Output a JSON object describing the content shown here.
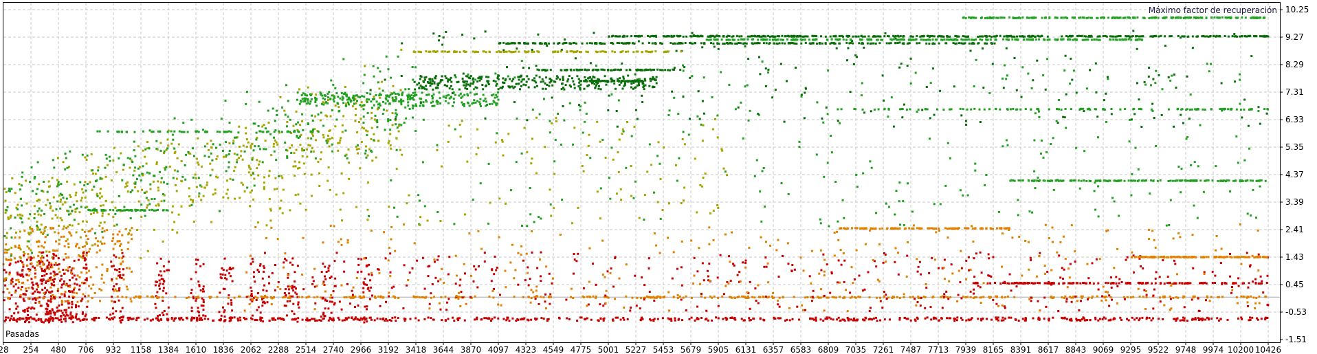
{
  "chart_data": {
    "type": "scatter",
    "title": "Máximo factor de recuperación",
    "xlabel": "Pasadas",
    "ylabel": "",
    "xlim": [
      28,
      10426
    ],
    "ylim": [
      -1.51,
      10.25
    ],
    "grid": true,
    "x_ticks": [
      "28",
      "254",
      "480",
      "706",
      "932",
      "1158",
      "1384",
      "1610",
      "1836",
      "2062",
      "2288",
      "2514",
      "2740",
      "2966",
      "3192",
      "3418",
      "3644",
      "3870",
      "4097",
      "4323",
      "4549",
      "4775",
      "5001",
      "5227",
      "5453",
      "5679",
      "5905",
      "6131",
      "6357",
      "6583",
      "6809",
      "7035",
      "7261",
      "7487",
      "7713",
      "7939",
      "8165",
      "8391",
      "8617",
      "8843",
      "9069",
      "9295",
      "9522",
      "9748",
      "9974",
      "10200",
      "10426"
    ],
    "y_ticks": [
      "10.25",
      "9.27",
      "8.29",
      "7.31",
      "6.33",
      "5.35",
      "4.37",
      "3.39",
      "2.41",
      "1.43",
      "0.45",
      "-0.53",
      "-1.51"
    ],
    "colors": {
      "red": "#c80000",
      "orange": "#e08000",
      "olive": "#a6a600",
      "green": "#22a022",
      "dkgreen": "#0a6e0a"
    },
    "seed": 12345,
    "point_clusters": [
      {
        "color": "red",
        "x": [
          28,
          600
        ],
        "y": [
          -0.9,
          1.5
        ],
        "n": 250
      },
      {
        "color": "orange",
        "x": [
          28,
          1100
        ],
        "y": [
          -0.2,
          2.5
        ],
        "n": 250
      },
      {
        "color": "olive",
        "x": [
          28,
          3300
        ],
        "trend": [
          2.5,
          6.5
        ],
        "spread": 0.9,
        "n": 500
      },
      {
        "color": "green",
        "x": [
          28,
          3400
        ],
        "trend": [
          3.0,
          7.2
        ],
        "spread": 0.8,
        "n": 350
      },
      {
        "color": "green",
        "x": [
          2400,
          4100
        ],
        "y": [
          6.8,
          7.3
        ],
        "n": 250
      },
      {
        "color": "dkgreen",
        "x": [
          3400,
          5400
        ],
        "y": [
          7.4,
          7.9
        ],
        "n": 300
      },
      {
        "color": "red",
        "x": [
          340,
          460
        ],
        "y": [
          -0.9,
          1.8
        ],
        "n": 40
      },
      {
        "color": "red",
        "x": [
          600,
          720
        ],
        "y": [
          -0.9,
          1.6
        ],
        "n": 40
      },
      {
        "color": "red",
        "x": [
          900,
          1020
        ],
        "y": [
          -0.9,
          1.6
        ],
        "n": 40
      },
      {
        "color": "red",
        "x": [
          1270,
          1390
        ],
        "y": [
          -0.9,
          1.4
        ],
        "n": 40
      },
      {
        "color": "red",
        "x": [
          1570,
          1690
        ],
        "y": [
          -0.9,
          1.4
        ],
        "n": 40
      },
      {
        "color": "red",
        "x": [
          1800,
          1920
        ],
        "y": [
          -0.9,
          1.4
        ],
        "n": 40
      },
      {
        "color": "red",
        "x": [
          2060,
          2180
        ],
        "y": [
          -0.9,
          1.4
        ],
        "n": 35
      },
      {
        "color": "red",
        "x": [
          2340,
          2460
        ],
        "y": [
          -0.9,
          1.4
        ],
        "n": 35
      },
      {
        "color": "red",
        "x": [
          2640,
          2760
        ],
        "y": [
          -0.9,
          1.4
        ],
        "n": 30
      },
      {
        "color": "red",
        "x": [
          2940,
          3060
        ],
        "y": [
          -0.9,
          1.4
        ],
        "n": 30
      },
      {
        "color": "red",
        "x": [
          28,
          10426
        ],
        "y": [
          -0.84,
          -0.72
        ],
        "n": 600
      },
      {
        "color": "orange",
        "x": [
          1000,
          10426
        ],
        "y": [
          -0.03,
          0.03
        ],
        "n": 350
      },
      {
        "color": "red",
        "x": [
          2000,
          10426
        ],
        "y": [
          -0.5,
          1.6
        ],
        "n": 400
      },
      {
        "color": "orange",
        "x": [
          2000,
          10426
        ],
        "y": [
          -0.5,
          2.6
        ],
        "n": 300
      },
      {
        "color": "green",
        "x": [
          3000,
          10426
        ],
        "y": [
          2.5,
          8.5
        ],
        "n": 300
      },
      {
        "color": "dkgreen",
        "x": [
          3000,
          10426
        ],
        "y": [
          6.0,
          9.5
        ],
        "n": 200
      },
      {
        "color": "olive",
        "x": [
          2000,
          6000
        ],
        "y": [
          2.5,
          6.5
        ],
        "n": 150
      }
    ],
    "streaks": [
      {
        "color": "green",
        "x": [
          7900,
          10426
        ],
        "y": 9.96,
        "n": 200
      },
      {
        "color": "dkgreen",
        "x": [
          5000,
          10426
        ],
        "y": 9.3,
        "n": 400
      },
      {
        "color": "green",
        "x": [
          5800,
          9400
        ],
        "y": 9.18,
        "n": 250
      },
      {
        "color": "dkgreen",
        "x": [
          4100,
          8200
        ],
        "y": 9.05,
        "n": 250
      },
      {
        "color": "olive",
        "x": [
          3400,
          5600
        ],
        "y": 8.75,
        "n": 120
      },
      {
        "color": "dkgreen",
        "x": [
          4400,
          5600
        ],
        "y": 8.1,
        "n": 80
      },
      {
        "color": "dkgreen",
        "x": [
          4800,
          5300
        ],
        "y": 7.7,
        "n": 80
      },
      {
        "color": "green",
        "x": [
          6800,
          10426
        ],
        "y": 6.7,
        "n": 120
      },
      {
        "color": "green",
        "x": [
          8300,
          10426
        ],
        "y": 4.15,
        "n": 150
      },
      {
        "color": "orange",
        "x": [
          6900,
          8300
        ],
        "y": 2.45,
        "n": 100
      },
      {
        "color": "orange",
        "x": [
          9300,
          10426
        ],
        "y": 1.43,
        "n": 120
      },
      {
        "color": "red",
        "x": [
          8000,
          10426
        ],
        "y": 0.5,
        "n": 150
      },
      {
        "color": "green",
        "x": [
          700,
          1400
        ],
        "y": 3.1,
        "n": 60
      },
      {
        "color": "green",
        "x": [
          800,
          2700
        ],
        "y": 5.9,
        "n": 60
      }
    ]
  }
}
